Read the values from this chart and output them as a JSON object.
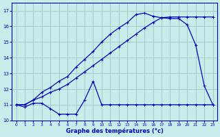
{
  "title": "Graphe des températures (°c)",
  "bg_color": "#c8ecea",
  "line_color": "#0000bb",
  "grid_color": "#a0cccc",
  "ylim": [
    10,
    17.5
  ],
  "yticks": [
    10,
    11,
    12,
    13,
    14,
    15,
    16,
    17
  ],
  "xlim": [
    -0.5,
    23.5
  ],
  "xticks": [
    0,
    1,
    2,
    3,
    4,
    5,
    6,
    7,
    8,
    9,
    10,
    11,
    12,
    13,
    14,
    15,
    16,
    17,
    18,
    19,
    20,
    21,
    22,
    23
  ],
  "series1_x": [
    0,
    1,
    2,
    3,
    4,
    5,
    6,
    7,
    8,
    9,
    10,
    11,
    12,
    13,
    14,
    15,
    16,
    17,
    18,
    19,
    20,
    21,
    22,
    23
  ],
  "series1_y": [
    11.0,
    10.85,
    11.1,
    11.1,
    10.75,
    10.4,
    10.4,
    10.4,
    11.3,
    12.5,
    11.0,
    11.0,
    11.0,
    11.0,
    11.0,
    11.0,
    11.0,
    11.0,
    11.0,
    11.0,
    11.0,
    11.0,
    11.0,
    11.0
  ],
  "series2_x": [
    0,
    1,
    2,
    3,
    4,
    5,
    6,
    7,
    8,
    9,
    10,
    11,
    12,
    13,
    14,
    15,
    16,
    17,
    18,
    19,
    20,
    21,
    22,
    23
  ],
  "series2_y": [
    11.0,
    11.0,
    11.3,
    11.5,
    11.8,
    12.0,
    12.3,
    12.7,
    13.1,
    13.5,
    13.9,
    14.3,
    14.7,
    15.1,
    15.5,
    15.9,
    16.25,
    16.55,
    16.6,
    16.6,
    16.6,
    16.6,
    16.6,
    16.6
  ],
  "series3_x": [
    0,
    1,
    2,
    3,
    4,
    5,
    6,
    7,
    8,
    9,
    10,
    11,
    12,
    13,
    14,
    15,
    16,
    17,
    18,
    19,
    20,
    21,
    22,
    23
  ],
  "series3_y": [
    11.0,
    11.0,
    11.3,
    11.8,
    12.1,
    12.5,
    12.8,
    13.4,
    13.9,
    14.4,
    15.0,
    15.5,
    15.9,
    16.25,
    16.75,
    16.85,
    16.65,
    16.55,
    16.5,
    16.5,
    16.1,
    14.8,
    12.2,
    11.0
  ],
  "marker_size": 2.5,
  "line_width": 0.9,
  "xlabel_size": 6,
  "tick_size": 5,
  "xlabel_bold": true
}
